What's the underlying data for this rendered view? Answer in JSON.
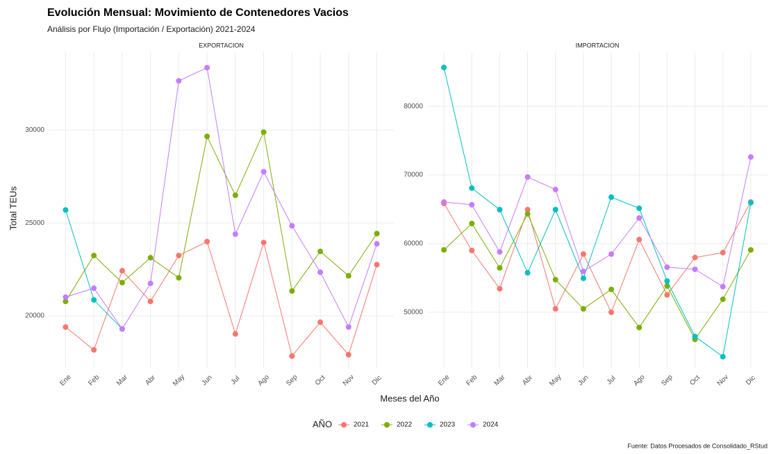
{
  "title": "Evolución Mensual: Movimiento de Contenedores Vacios",
  "subtitle": "Análisis por Flujo (Importación / Exportación) 2021-2024",
  "x_label": "Meses del Año",
  "y_label": "Total TEUs",
  "legend_title": "AÑO",
  "caption": "Fuente: Datos Procesados de Consolidado_RStud",
  "chart_data": [
    {
      "type": "line",
      "title": "EXPORTACION",
      "categories": [
        "Ene",
        "Feb",
        "Mar",
        "Abr",
        "May",
        "Jun",
        "Jul",
        "Ago",
        "Sep",
        "Oct",
        "Nov",
        "Dic"
      ],
      "ylim": [
        17200,
        34200
      ],
      "yticks": [
        20000,
        25000,
        30000
      ],
      "grid": true,
      "series": [
        {
          "name": "2021",
          "color": "#f8766d",
          "values": [
            19400,
            18170,
            22430,
            20780,
            23250,
            24000,
            19030,
            23950,
            17840,
            19660,
            17910,
            22760
          ]
        },
        {
          "name": "2022",
          "color": "#7cae00",
          "values": [
            20780,
            23250,
            21790,
            23130,
            22050,
            29660,
            26490,
            29890,
            21340,
            23470,
            22160,
            24430
          ]
        },
        {
          "name": "2023",
          "color": "#00bfc4",
          "values": [
            25700,
            20860,
            19300,
            null,
            null,
            null,
            null,
            null,
            null,
            null,
            null,
            null
          ]
        },
        {
          "name": "2024",
          "color": "#c77cff",
          "values": [
            21010,
            21490,
            19300,
            21750,
            32650,
            33360,
            24400,
            27760,
            24850,
            22350,
            19400,
            23880
          ]
        }
      ]
    },
    {
      "type": "line",
      "title": "IMPORTACION",
      "categories": [
        "Ene",
        "Feb",
        "Mar",
        "Abr",
        "May",
        "Jun",
        "Jul",
        "Ago",
        "Sep",
        "Oct",
        "Nov",
        "Dic"
      ],
      "ylim": [
        41900,
        87900
      ],
      "yticks": [
        50000,
        60000,
        70000,
        80000
      ],
      "grid": true,
      "series": [
        {
          "name": "2021",
          "color": "#f8766d",
          "values": [
            65860,
            59000,
            53430,
            64950,
            50500,
            58480,
            50000,
            60600,
            52530,
            57980,
            58690,
            66060
          ]
        },
        {
          "name": "2022",
          "color": "#7cae00",
          "values": [
            59090,
            62930,
            56460,
            64340,
            54750,
            50500,
            53330,
            47780,
            53840,
            46060,
            51900,
            59090
          ]
        },
        {
          "name": "2023",
          "color": "#00bfc4",
          "values": [
            85650,
            68080,
            64950,
            55760,
            64950,
            54950,
            66770,
            65150,
            54550,
            46470,
            43540,
            65960
          ]
        },
        {
          "name": "2024",
          "color": "#c77cff",
          "values": [
            66060,
            65660,
            58790,
            69700,
            67880,
            55960,
            58480,
            63740,
            56570,
            56260,
            53740,
            72620
          ]
        }
      ]
    }
  ]
}
